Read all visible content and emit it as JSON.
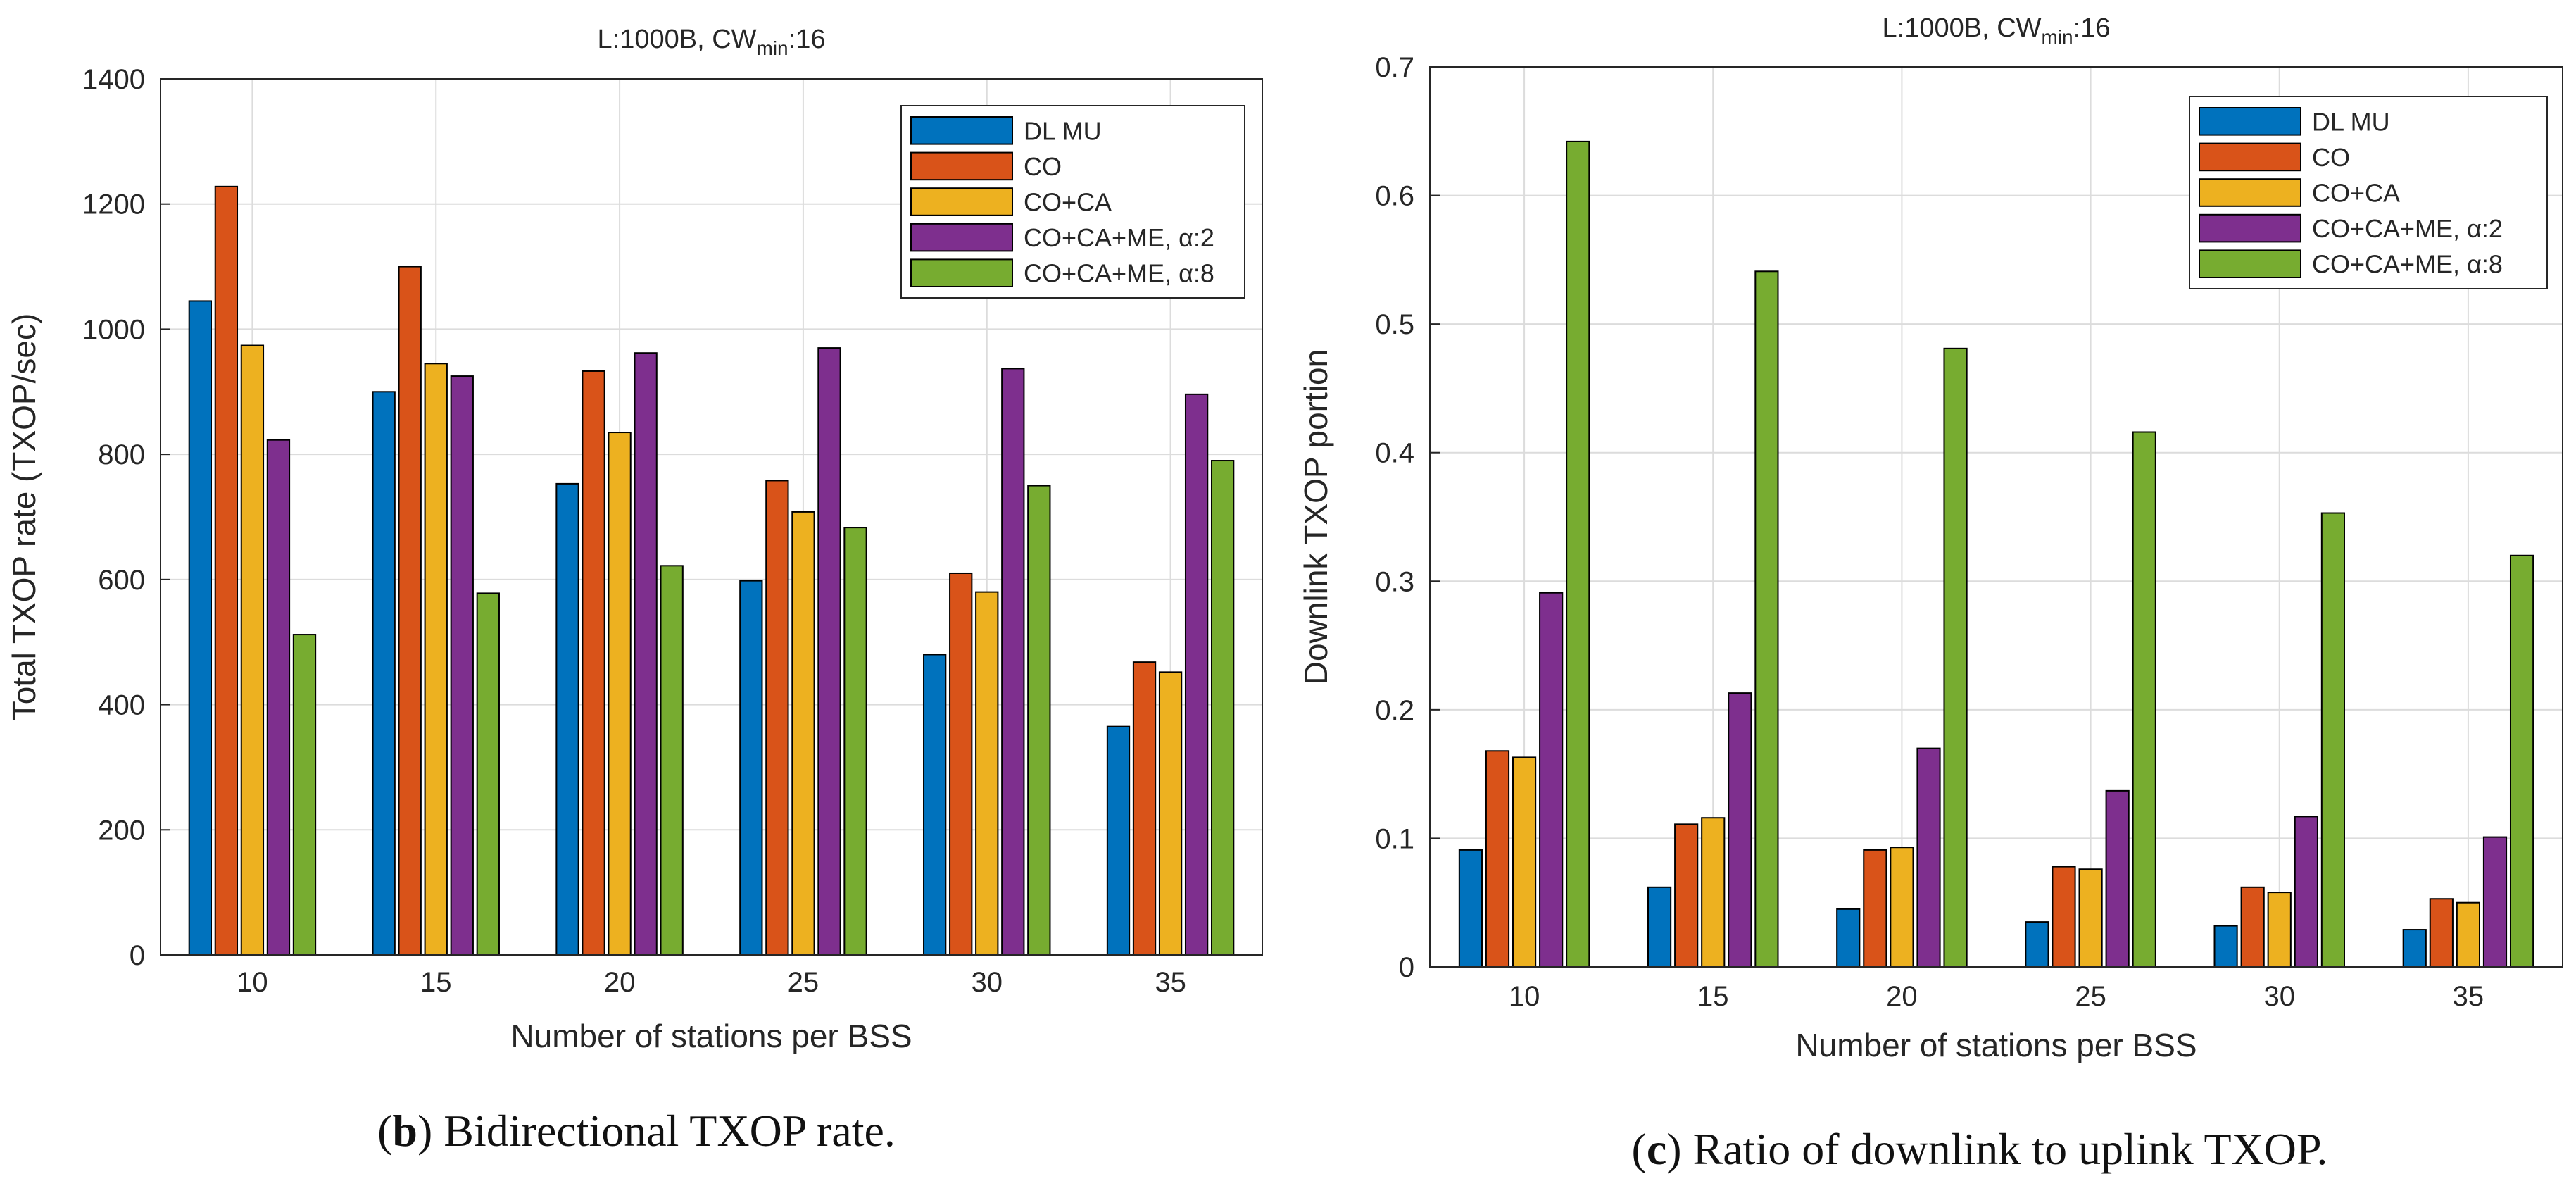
{
  "colors": {
    "series": [
      "#0072BD",
      "#D95319",
      "#EDB120",
      "#7E2F8E",
      "#77AC30"
    ],
    "grid": "#dcdcdc",
    "axis": "#262626"
  },
  "chart_data": [
    {
      "type": "bar",
      "title": "L:1000B, CWmin:16",
      "title_parts": {
        "main": "L:1000B, CW",
        "sub": "min",
        "tail": ":16"
      },
      "xlabel": "Number of stations per BSS",
      "ylabel": "Total TXOP rate (TXOP/sec)",
      "categories": [
        "10",
        "15",
        "20",
        "25",
        "30",
        "35"
      ],
      "ylim": [
        0,
        1400
      ],
      "yticks": [
        0,
        200,
        400,
        600,
        800,
        1000,
        1200,
        1400
      ],
      "ytick_labels": [
        "0",
        "200",
        "400",
        "600",
        "800",
        "1000",
        "1200",
        "1400"
      ],
      "grid": true,
      "legend_position": "top-right",
      "series": [
        {
          "name": "DL MU",
          "label_main": "DL MU",
          "label_alpha": "",
          "values": [
            1045,
            900,
            753,
            598,
            480,
            365
          ]
        },
        {
          "name": "CO",
          "label_main": "CO",
          "label_alpha": "",
          "values": [
            1228,
            1100,
            933,
            758,
            610,
            468
          ]
        },
        {
          "name": "CO+CA",
          "label_main": "CO+CA",
          "label_alpha": "",
          "values": [
            974,
            945,
            835,
            708,
            580,
            452
          ]
        },
        {
          "name": "CO+CA+ME, α:2",
          "label_main": "CO+CA+ME, ",
          "label_alpha": "α:2",
          "values": [
            823,
            925,
            962,
            970,
            937,
            896
          ]
        },
        {
          "name": "CO+CA+ME, α:8",
          "label_main": "CO+CA+ME, ",
          "label_alpha": "α:8",
          "values": [
            512,
            578,
            622,
            683,
            750,
            790
          ]
        }
      ],
      "caption": {
        "letter": "b",
        "text": "Bidirectional TXOP rate."
      }
    },
    {
      "type": "bar",
      "title": "L:1000B, CWmin:16",
      "title_parts": {
        "main": "L:1000B, CW",
        "sub": "min",
        "tail": ":16"
      },
      "xlabel": "Number of stations per BSS",
      "ylabel": "Downlink TXOP portion",
      "categories": [
        "10",
        "15",
        "20",
        "25",
        "30",
        "35"
      ],
      "ylim": [
        0,
        0.7
      ],
      "yticks": [
        0,
        0.1,
        0.2,
        0.3,
        0.4,
        0.5,
        0.6,
        0.7
      ],
      "ytick_labels": [
        "0",
        "0.1",
        "0.2",
        "0.3",
        "0.4",
        "0.5",
        "0.6",
        "0.7"
      ],
      "grid": true,
      "legend_position": "top-right",
      "series": [
        {
          "name": "DL MU",
          "label_main": "DL MU",
          "label_alpha": "",
          "values": [
            0.091,
            0.062,
            0.045,
            0.035,
            0.032,
            0.029
          ]
        },
        {
          "name": "CO",
          "label_main": "CO",
          "label_alpha": "",
          "values": [
            0.168,
            0.111,
            0.091,
            0.078,
            0.062,
            0.053
          ]
        },
        {
          "name": "CO+CA",
          "label_main": "CO+CA",
          "label_alpha": "",
          "values": [
            0.163,
            0.116,
            0.093,
            0.076,
            0.058,
            0.05
          ]
        },
        {
          "name": "CO+CA+ME, α:2",
          "label_main": "CO+CA+ME, ",
          "label_alpha": "α:2",
          "values": [
            0.291,
            0.213,
            0.17,
            0.137,
            0.117,
            0.101
          ]
        },
        {
          "name": "CO+CA+ME, α:8",
          "label_main": "CO+CA+ME, ",
          "label_alpha": "α:8",
          "values": [
            0.642,
            0.541,
            0.481,
            0.416,
            0.353,
            0.32
          ]
        }
      ],
      "caption": {
        "letter": "c",
        "text": "Ratio of downlink to uplink TXOP."
      }
    }
  ]
}
